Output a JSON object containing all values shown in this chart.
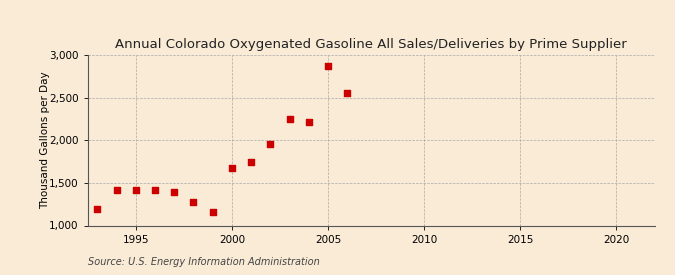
{
  "title": "Annual Colorado Oxygenated Gasoline All Sales/Deliveries by Prime Supplier",
  "ylabel": "Thousand Gallons per Day",
  "source_text": "Source: U.S. Energy Information Administration",
  "background_color": "#faebd7",
  "marker_color": "#cc0000",
  "x_data": [
    1993,
    1994,
    1995,
    1996,
    1997,
    1998,
    1999,
    2000,
    2001,
    2002,
    2003,
    2004,
    2005,
    2006
  ],
  "y_data": [
    1193,
    1420,
    1415,
    1420,
    1390,
    1280,
    1155,
    1675,
    1750,
    1960,
    2250,
    2210,
    2870,
    2560
  ],
  "xlim": [
    1992.5,
    2022
  ],
  "ylim": [
    1000,
    3000
  ],
  "xticks": [
    1995,
    2000,
    2005,
    2010,
    2015,
    2020
  ],
  "yticks": [
    1000,
    1500,
    2000,
    2500,
    3000
  ],
  "ytick_labels": [
    "1,000",
    "1,500",
    "2,000",
    "2,500",
    "3,000"
  ],
  "title_fontsize": 9.5,
  "axis_fontsize": 7.5,
  "source_fontsize": 7.0,
  "ylabel_fontsize": 7.5
}
